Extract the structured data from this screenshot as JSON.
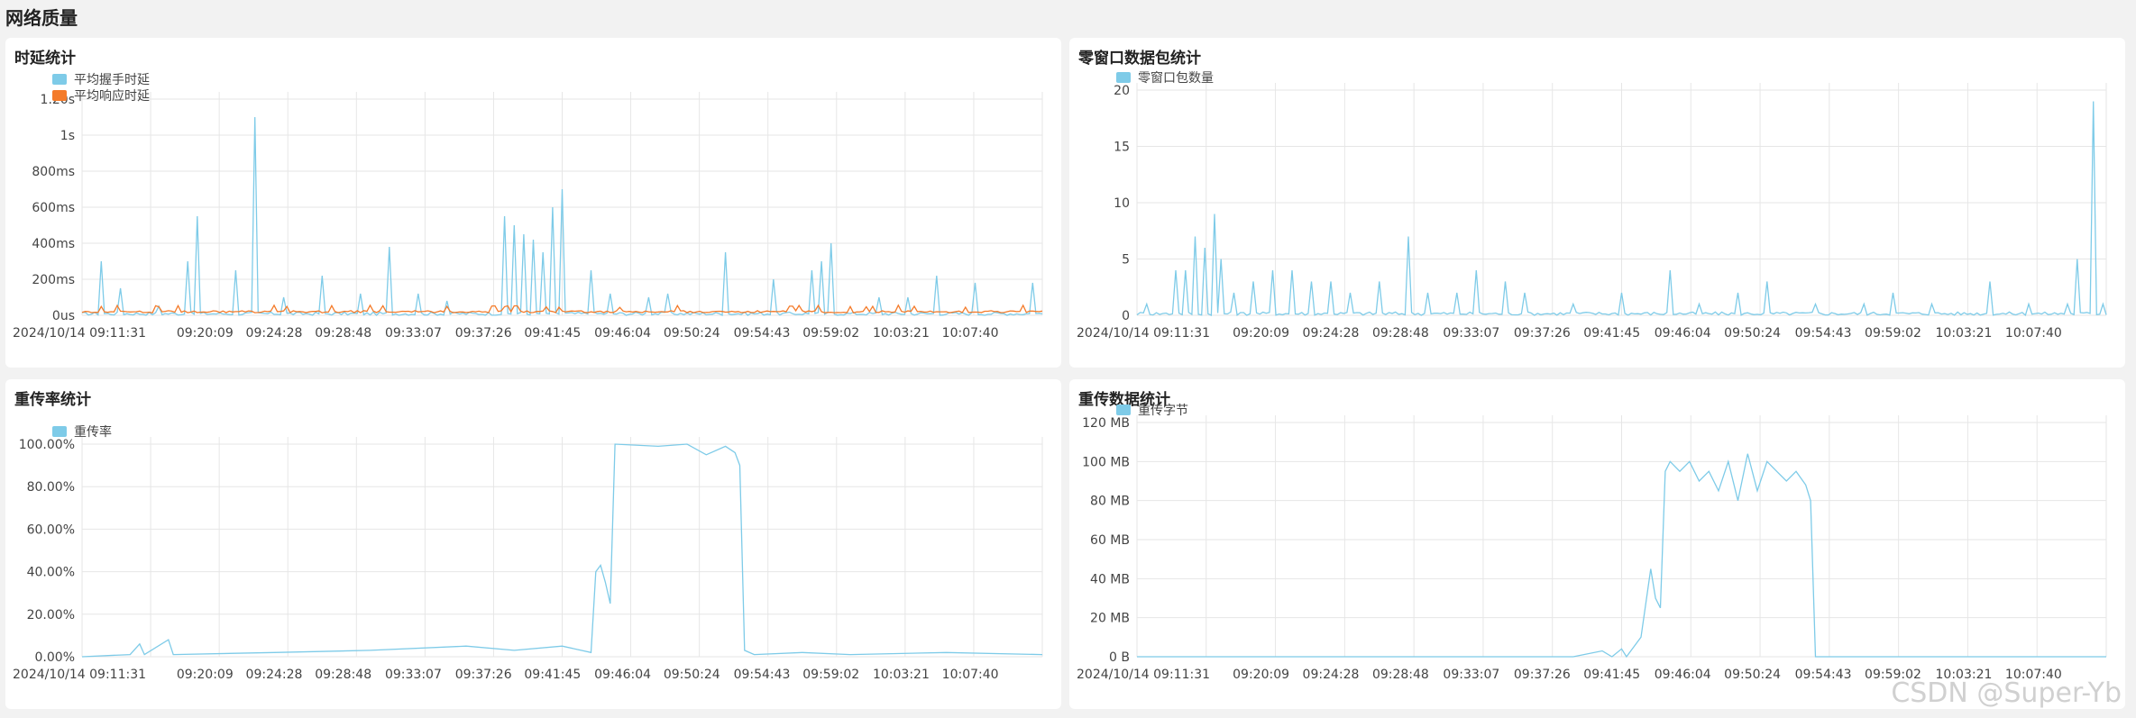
{
  "page": {
    "title": "网络质量"
  },
  "watermark": "CSDN @Super-Yb",
  "colors": {
    "series_blue": "#7ecbe8",
    "series_orange": "#f47b2a",
    "grid": "#e6e6e6"
  },
  "time_labels": [
    "2024/10/14 09:11:31",
    "09:20:09",
    "09:24:28",
    "09:28:48",
    "09:33:07",
    "09:37:26",
    "09:41:45",
    "09:46:04",
    "09:50:24",
    "09:54:43",
    "09:59:02",
    "10:03:21",
    "10:07:40"
  ],
  "panels": [
    {
      "id": "latency",
      "title": "时延统计",
      "chart_data": {
        "type": "line",
        "y_ticks": [
          "0us",
          "200ms",
          "400ms",
          "600ms",
          "800ms",
          "1s",
          "1.20s"
        ],
        "ylim": [
          0,
          1.2
        ],
        "series": [
          {
            "name": "平均握手时延",
            "color": "#7ecbe8",
            "spikes": [
              [
                0.02,
                0.3
              ],
              [
                0.04,
                0.15
              ],
              [
                0.08,
                0.05
              ],
              [
                0.11,
                0.3
              ],
              [
                0.12,
                0.55
              ],
              [
                0.16,
                0.25
              ],
              [
                0.18,
                1.1
              ],
              [
                0.21,
                0.1
              ],
              [
                0.25,
                0.22
              ],
              [
                0.29,
                0.12
              ],
              [
                0.32,
                0.38
              ],
              [
                0.35,
                0.12
              ],
              [
                0.38,
                0.08
              ],
              [
                0.44,
                0.55
              ],
              [
                0.45,
                0.5
              ],
              [
                0.46,
                0.45
              ],
              [
                0.47,
                0.42
              ],
              [
                0.48,
                0.35
              ],
              [
                0.49,
                0.6
              ],
              [
                0.5,
                0.7
              ],
              [
                0.53,
                0.25
              ],
              [
                0.55,
                0.12
              ],
              [
                0.59,
                0.1
              ],
              [
                0.61,
                0.12
              ],
              [
                0.67,
                0.35
              ],
              [
                0.72,
                0.2
              ],
              [
                0.76,
                0.25
              ],
              [
                0.77,
                0.3
              ],
              [
                0.78,
                0.4
              ],
              [
                0.83,
                0.1
              ],
              [
                0.86,
                0.1
              ],
              [
                0.89,
                0.22
              ],
              [
                0.93,
                0.18
              ],
              [
                0.99,
                0.18
              ]
            ]
          },
          {
            "name": "平均响应时延",
            "color": "#f47b2a",
            "level": 0.02
          }
        ]
      }
    },
    {
      "id": "zero-window",
      "title": "零窗口数据包统计",
      "chart_data": {
        "type": "line",
        "y_ticks": [
          "0",
          "5",
          "10",
          "15",
          "20"
        ],
        "ylim": [
          0,
          20
        ],
        "series": [
          {
            "name": "零窗口包数量",
            "color": "#7ecbe8",
            "spikes": [
              [
                0.01,
                1
              ],
              [
                0.04,
                4
              ],
              [
                0.05,
                4
              ],
              [
                0.06,
                7
              ],
              [
                0.07,
                6
              ],
              [
                0.08,
                9
              ],
              [
                0.085,
                5
              ],
              [
                0.1,
                2
              ],
              [
                0.12,
                3
              ],
              [
                0.14,
                4
              ],
              [
                0.16,
                4
              ],
              [
                0.18,
                3
              ],
              [
                0.2,
                3
              ],
              [
                0.22,
                2
              ],
              [
                0.25,
                3
              ],
              [
                0.28,
                7
              ],
              [
                0.3,
                2
              ],
              [
                0.33,
                2
              ],
              [
                0.35,
                4
              ],
              [
                0.38,
                3
              ],
              [
                0.4,
                2
              ],
              [
                0.45,
                1
              ],
              [
                0.5,
                2
              ],
              [
                0.55,
                4
              ],
              [
                0.58,
                1
              ],
              [
                0.62,
                2
              ],
              [
                0.65,
                3
              ],
              [
                0.7,
                1
              ],
              [
                0.75,
                1
              ],
              [
                0.78,
                2
              ],
              [
                0.82,
                1
              ],
              [
                0.88,
                3
              ],
              [
                0.92,
                1
              ],
              [
                0.96,
                1
              ],
              [
                0.97,
                5
              ],
              [
                0.985,
                19
              ],
              [
                0.995,
                1
              ]
            ]
          }
        ]
      }
    },
    {
      "id": "retrans-rate",
      "title": "重传率统计",
      "chart_data": {
        "type": "line",
        "y_ticks": [
          "0.00%",
          "20.00%",
          "40.00%",
          "60.00%",
          "80.00%",
          "100.00%"
        ],
        "ylim": [
          0,
          100
        ],
        "series": [
          {
            "name": "重传率",
            "color": "#7ecbe8",
            "points": [
              [
                0,
                0
              ],
              [
                0.05,
                1
              ],
              [
                0.06,
                6
              ],
              [
                0.065,
                1
              ],
              [
                0.09,
                8
              ],
              [
                0.095,
                1
              ],
              [
                0.2,
                2
              ],
              [
                0.3,
                3
              ],
              [
                0.4,
                5
              ],
              [
                0.45,
                3
              ],
              [
                0.5,
                5
              ],
              [
                0.53,
                2
              ],
              [
                0.535,
                40
              ],
              [
                0.54,
                43
              ],
              [
                0.545,
                35
              ],
              [
                0.55,
                25
              ],
              [
                0.555,
                100
              ],
              [
                0.6,
                99
              ],
              [
                0.63,
                100
              ],
              [
                0.65,
                95
              ],
              [
                0.67,
                99
              ],
              [
                0.68,
                96
              ],
              [
                0.685,
                90
              ],
              [
                0.69,
                3
              ],
              [
                0.7,
                1
              ],
              [
                0.75,
                2
              ],
              [
                0.8,
                1
              ],
              [
                0.9,
                2
              ],
              [
                1.0,
                1
              ]
            ]
          }
        ]
      }
    },
    {
      "id": "retrans-bytes",
      "title": "重传数据统计",
      "chart_data": {
        "type": "line",
        "y_ticks": [
          "0 B",
          "20 MB",
          "40 MB",
          "60 MB",
          "80 MB",
          "100 MB",
          "120 MB"
        ],
        "ylim": [
          0,
          120
        ],
        "series": [
          {
            "name": "重传字节",
            "color": "#7ecbe8",
            "points": [
              [
                0,
                0
              ],
              [
                0.45,
                0
              ],
              [
                0.48,
                3
              ],
              [
                0.49,
                0
              ],
              [
                0.5,
                4
              ],
              [
                0.505,
                0
              ],
              [
                0.52,
                10
              ],
              [
                0.53,
                45
              ],
              [
                0.535,
                30
              ],
              [
                0.54,
                25
              ],
              [
                0.545,
                95
              ],
              [
                0.55,
                100
              ],
              [
                0.56,
                95
              ],
              [
                0.57,
                100
              ],
              [
                0.58,
                90
              ],
              [
                0.59,
                95
              ],
              [
                0.6,
                85
              ],
              [
                0.61,
                100
              ],
              [
                0.62,
                80
              ],
              [
                0.63,
                104
              ],
              [
                0.64,
                85
              ],
              [
                0.65,
                100
              ],
              [
                0.66,
                95
              ],
              [
                0.67,
                90
              ],
              [
                0.68,
                95
              ],
              [
                0.69,
                88
              ],
              [
                0.695,
                80
              ],
              [
                0.7,
                0
              ],
              [
                1.0,
                0
              ]
            ]
          }
        ]
      }
    }
  ]
}
